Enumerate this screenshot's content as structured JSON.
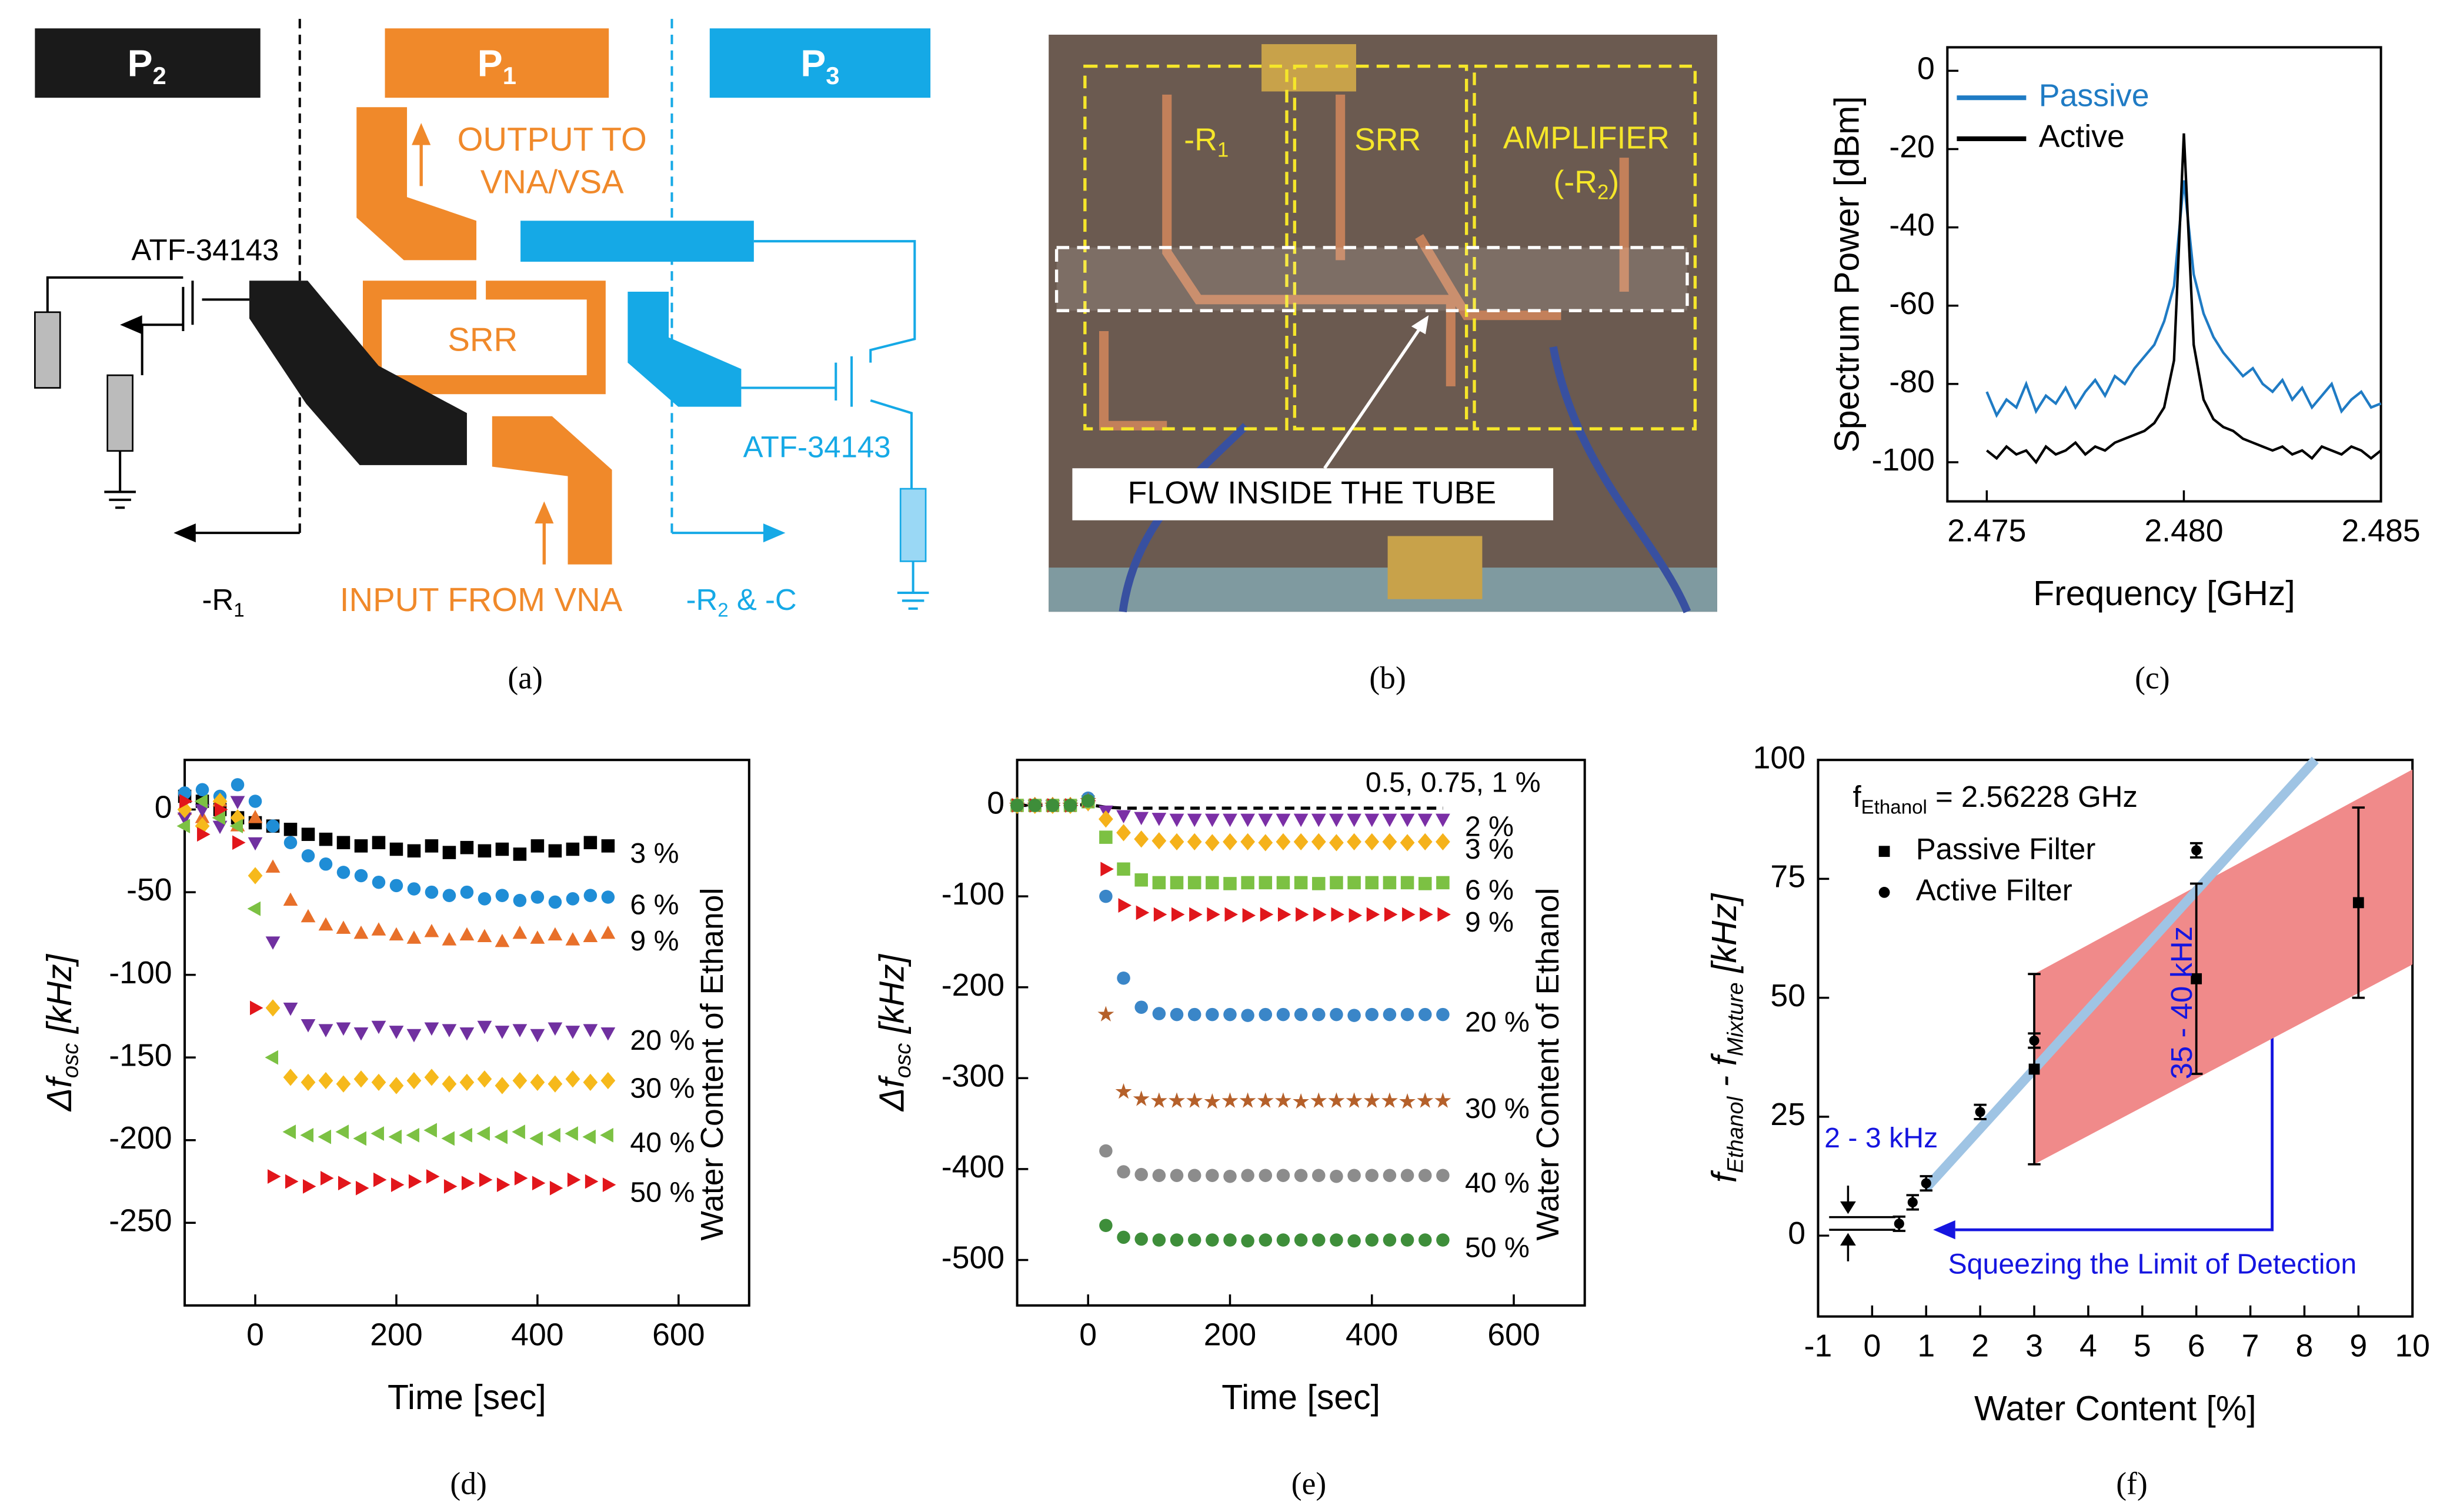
{
  "diagram": {
    "ports": [
      {
        "text": "P",
        "sub": "2"
      },
      {
        "text": "P",
        "sub": "1"
      },
      {
        "text": "P",
        "sub": "3"
      }
    ],
    "output": [
      "OUTPUT TO",
      "VNA/VSA"
    ],
    "srr": "SRR",
    "transistor_left": "ATF-34143",
    "transistor_right": "ATF-34143",
    "left_label": {
      "text": "-R",
      "sub": "1"
    },
    "input": "INPUT FROM VNA",
    "right_label": {
      "text": "-R",
      "sub": "2",
      "rest": " & -C"
    }
  },
  "photo": {
    "left_box": {
      "text": "-R",
      "sub": "1"
    },
    "middle_box": "SRR",
    "right_box": [
      "AMPLIFIER",
      {
        "text": "(-R",
        "sub": "2",
        "rest": ")"
      }
    ],
    "flow": "FLOW INSIDE THE TUBE"
  },
  "captions": [
    "(a)",
    "(b)",
    "(c)",
    "(d)",
    "(e)",
    "(f)"
  ],
  "chart_data": [
    {
      "type": "line",
      "x_label": "Frequency [GHz]",
      "y_label": "Spectrum Power [dBm]",
      "xlim": [
        2.474,
        2.485
      ],
      "ylim": [
        -110,
        6
      ],
      "xticks": [
        {
          "value": 2.475,
          "label": "2.475"
        },
        {
          "value": 2.48,
          "label": "2.480"
        },
        {
          "value": 2.485,
          "label": "2.485"
        }
      ],
      "yticks": [
        -100,
        -80,
        -60,
        -40,
        -20,
        0
      ],
      "legend": "upper left",
      "x": [
        2.475,
        2.47525,
        2.4755,
        2.47575,
        2.476,
        2.47625,
        2.4765,
        2.47675,
        2.477,
        2.47725,
        2.4775,
        2.47775,
        2.478,
        2.47825,
        2.4785,
        2.47875,
        2.479,
        2.47925,
        2.4795,
        2.47975,
        2.48,
        2.48025,
        2.4805,
        2.48075,
        2.481,
        2.48125,
        2.4815,
        2.48175,
        2.482,
        2.48225,
        2.4825,
        2.48275,
        2.483,
        2.48325,
        2.4835,
        2.48375,
        2.484,
        2.48425,
        2.4845,
        2.48475,
        2.485
      ],
      "series": [
        {
          "name": "Passive",
          "color": "#1f7bc4",
          "values": [
            -82,
            -88,
            -84,
            -86,
            -80,
            -87,
            -83,
            -85,
            -81,
            -86,
            -82,
            -79,
            -83,
            -78,
            -80,
            -76,
            -73,
            -70,
            -64,
            -55,
            -28,
            -52,
            -62,
            -68,
            -72,
            -75,
            -78,
            -76,
            -80,
            -82,
            -79,
            -84,
            -81,
            -86,
            -83,
            -80,
            -87,
            -84,
            -82,
            -86,
            -85
          ]
        },
        {
          "name": "Active",
          "color": "#000000",
          "values": [
            -97,
            -99,
            -96,
            -98,
            -97,
            -100,
            -96,
            -98,
            -97,
            -95,
            -98,
            -96,
            -97,
            -95,
            -94,
            -93,
            -92,
            -90,
            -86,
            -74,
            -16,
            -70,
            -84,
            -89,
            -91,
            -92,
            -94,
            -95,
            -96,
            -97,
            -96,
            -98,
            -97,
            -99,
            -96,
            -97,
            -98,
            -96,
            -97,
            -99,
            -97
          ]
        }
      ]
    },
    {
      "type": "scatter",
      "x_label": "Time [sec]",
      "y_label": {
        "text": "Δf",
        "sub": "osc",
        "rest": " [kHz]"
      },
      "legend_title": "Water Content of Ethanol",
      "xlim": [
        -100,
        700
      ],
      "ylim": [
        -300,
        30
      ],
      "xticks": [
        0,
        200,
        400,
        600
      ],
      "yticks": [
        -250,
        -200,
        -150,
        -100,
        -50,
        0
      ],
      "x": [
        -100,
        -75,
        -50,
        -25,
        0,
        25,
        50,
        75,
        100,
        125,
        150,
        175,
        200,
        225,
        250,
        275,
        300,
        325,
        350,
        375,
        400,
        425,
        450,
        475,
        500
      ],
      "series": [
        {
          "name": "3 %",
          "color": "#000000",
          "marker": "square",
          "values": [
            8,
            5,
            0,
            -5,
            -8,
            -10,
            -12,
            -15,
            -18,
            -20,
            -22,
            -20,
            -24,
            -25,
            -22,
            -26,
            -23,
            -25,
            -24,
            -27,
            -22,
            -25,
            -24,
            -20,
            -22
          ]
        },
        {
          "name": "6 %",
          "color": "#1f8dd6",
          "marker": "circle",
          "values": [
            10,
            12,
            8,
            15,
            5,
            -10,
            -20,
            -28,
            -33,
            -38,
            -40,
            -44,
            -46,
            -48,
            -50,
            -52,
            -50,
            -54,
            -52,
            -55,
            -53,
            -56,
            -54,
            -52,
            -53
          ]
        },
        {
          "name": "9 %",
          "color": "#e8702a",
          "marker": "tri-up",
          "values": [
            0,
            -5,
            5,
            -10,
            -5,
            -35,
            -55,
            -65,
            -70,
            -72,
            -75,
            -73,
            -76,
            -78,
            -74,
            -79,
            -76,
            -77,
            -80,
            -75,
            -78,
            -76,
            -79,
            -77,
            -75
          ]
        },
        {
          "name": "20 %",
          "color": "#7030a0",
          "marker": "tri-down",
          "values": [
            -5,
            0,
            -10,
            5,
            -20,
            -80,
            -120,
            -130,
            -133,
            -132,
            -135,
            -131,
            -134,
            -136,
            -132,
            -133,
            -135,
            -131,
            -134,
            -133,
            -136,
            -132,
            -134,
            -133,
            -135
          ]
        },
        {
          "name": "30 %",
          "color": "#f6b91b",
          "marker": "diamond",
          "values": [
            0,
            -10,
            5,
            -5,
            -40,
            -120,
            -162,
            -165,
            -164,
            -166,
            -163,
            -165,
            -167,
            -164,
            -162,
            -166,
            -165,
            -163,
            -167,
            -164,
            -165,
            -166,
            -163,
            -165,
            -164
          ]
        },
        {
          "name": "40 %",
          "color": "#7cc143",
          "marker": "tri-left",
          "values": [
            -10,
            5,
            -5,
            -10,
            -60,
            -150,
            -195,
            -197,
            -198,
            -195,
            -199,
            -196,
            -198,
            -197,
            -194,
            -199,
            -197,
            -196,
            -198,
            -195,
            -199,
            -197,
            -196,
            -198,
            -197
          ]
        },
        {
          "name": "50 %",
          "color": "#e2161b",
          "marker": "tri-right",
          "values": [
            5,
            -15,
            0,
            -20,
            -120,
            -222,
            -225,
            -228,
            -223,
            -226,
            -229,
            -224,
            -227,
            -225,
            -222,
            -228,
            -226,
            -224,
            -227,
            -223,
            -226,
            -229,
            -224,
            -225,
            -227
          ]
        }
      ]
    },
    {
      "type": "scatter",
      "x_label": "Time [sec]",
      "y_label": {
        "text": "Δf",
        "sub": "osc",
        "rest": " [kHz]"
      },
      "legend_title": "Water Content of Ethanol",
      "xlim": [
        -100,
        700
      ],
      "ylim": [
        -550,
        50
      ],
      "xticks": [
        0,
        200,
        400,
        600
      ],
      "yticks": [
        -500,
        -400,
        -300,
        -200,
        -100,
        0
      ],
      "x": [
        -100,
        -75,
        -50,
        -25,
        0,
        25,
        50,
        75,
        100,
        125,
        150,
        175,
        200,
        225,
        250,
        275,
        300,
        325,
        350,
        375,
        400,
        425,
        450,
        475,
        500
      ],
      "series": [
        {
          "name": "0.5, 0.75, 1 %",
          "color": "#000000",
          "marker": "dash",
          "values": [
            0,
            0,
            0,
            0,
            1,
            -2,
            -3,
            -3,
            -3,
            -3,
            -3,
            -3,
            -3,
            -3,
            -3,
            -3,
            -3,
            -3,
            -3,
            -3,
            -3,
            -3,
            -3,
            -3,
            -3
          ]
        },
        {
          "name": "2 %",
          "color": "#7b2fa6",
          "marker": "tri-down",
          "values": [
            0,
            0,
            0,
            0,
            2,
            -6,
            -11,
            -13,
            -14,
            -15,
            -15,
            -15,
            -15,
            -15,
            -15,
            -15,
            -15,
            -15,
            -15,
            -15,
            -15,
            -15,
            -15,
            -15,
            -15
          ]
        },
        {
          "name": "3 %",
          "color": "#f5b21b",
          "marker": "diamond",
          "values": [
            0,
            0,
            0,
            0,
            3,
            -15,
            -30,
            -37,
            -39,
            -40,
            -40,
            -41,
            -40,
            -40,
            -41,
            -40,
            -40,
            -40,
            -41,
            -40,
            -40,
            -40,
            -41,
            -40,
            -40
          ]
        },
        {
          "name": "6 %",
          "color": "#7cc143",
          "marker": "square",
          "values": [
            0,
            0,
            0,
            0,
            4,
            -35,
            -70,
            -82,
            -85,
            -85,
            -85,
            -85,
            -86,
            -85,
            -85,
            -85,
            -85,
            -86,
            -85,
            -85,
            -85,
            -85,
            -85,
            -86,
            -85
          ]
        },
        {
          "name": "9 %",
          "color": "#e0161b",
          "marker": "tri-right",
          "values": [
            0,
            0,
            0,
            0,
            5,
            -70,
            -110,
            -118,
            -120,
            -120,
            -120,
            -120,
            -120,
            -121,
            -120,
            -120,
            -120,
            -120,
            -120,
            -121,
            -120,
            -120,
            -120,
            -120,
            -120
          ]
        },
        {
          "name": "20 %",
          "color": "#3a86c8",
          "marker": "circle",
          "values": [
            0,
            0,
            0,
            0,
            8,
            -100,
            -190,
            -222,
            -229,
            -230,
            -230,
            -230,
            -230,
            -231,
            -230,
            -230,
            -230,
            -230,
            -230,
            -231,
            -230,
            -230,
            -230,
            -230,
            -230
          ]
        },
        {
          "name": "30 %",
          "color": "#b5602a",
          "marker": "star",
          "values": [
            0,
            0,
            0,
            0,
            5,
            -230,
            -315,
            -323,
            -325,
            -325,
            -325,
            -326,
            -325,
            -325,
            -325,
            -325,
            -326,
            -325,
            -325,
            -325,
            -325,
            -325,
            -326,
            -325,
            -325
          ]
        },
        {
          "name": "40 %",
          "color": "#8c8c8c",
          "marker": "circle",
          "values": [
            0,
            0,
            0,
            0,
            5,
            -380,
            -403,
            -406,
            -407,
            -407,
            -407,
            -407,
            -408,
            -407,
            -407,
            -407,
            -407,
            -407,
            -408,
            -407,
            -407,
            -407,
            -407,
            -407,
            -407
          ]
        },
        {
          "name": "50 %",
          "color": "#3e8e3a",
          "marker": "circle",
          "values": [
            0,
            0,
            0,
            0,
            5,
            -462,
            -475,
            -477,
            -478,
            -478,
            -478,
            -478,
            -478,
            -479,
            -478,
            -478,
            -478,
            -478,
            -478,
            -479,
            -478,
            -478,
            -478,
            -478,
            -478
          ]
        }
      ]
    },
    {
      "type": "errorbar",
      "x_label": "Water Content [%]",
      "y_label": {
        "text": "f",
        "sub": "Ethanol",
        "rest": " - f",
        "sub2": "Mixture",
        "rest2": " [kHz]"
      },
      "formula": {
        "text": "f",
        "sub": "Ethanol",
        "rest": " = 2.56228 GHz"
      },
      "xlim": [
        -1,
        10
      ],
      "ylim": [
        -17,
        100
      ],
      "xticks": [
        -1,
        0,
        1,
        2,
        3,
        4,
        5,
        6,
        7,
        8,
        9,
        10
      ],
      "yticks": [
        0,
        25,
        50,
        75,
        100
      ],
      "legend": "upper left",
      "band": {
        "color": "#f08a8a",
        "x": [
          3,
          10
        ],
        "lower": [
          15,
          57
        ],
        "upper": [
          55,
          98
        ]
      },
      "fit_line": {
        "color": "#9fc4e4",
        "x": [
          1,
          8.2
        ],
        "values": [
          10,
          100
        ]
      },
      "annotations": [
        "35 - 40 kHz",
        "2 - 3 kHz",
        "Squeezing the Limit of Detection"
      ],
      "series": [
        {
          "name": "Passive Filter",
          "color": "#000000",
          "marker": "square",
          "x": [
            3,
            6,
            9
          ],
          "values": [
            35,
            54,
            70
          ],
          "errors": [
            20,
            20,
            20
          ]
        },
        {
          "name": "Active Filter",
          "color": "#000000",
          "marker": "circle",
          "x": [
            0.5,
            0.75,
            1,
            2,
            3,
            6
          ],
          "values": [
            2.5,
            7,
            11,
            26,
            41,
            81
          ],
          "errors": [
            1.5,
            1.5,
            1.5,
            1.5,
            1.5,
            1.5
          ]
        }
      ]
    }
  ]
}
